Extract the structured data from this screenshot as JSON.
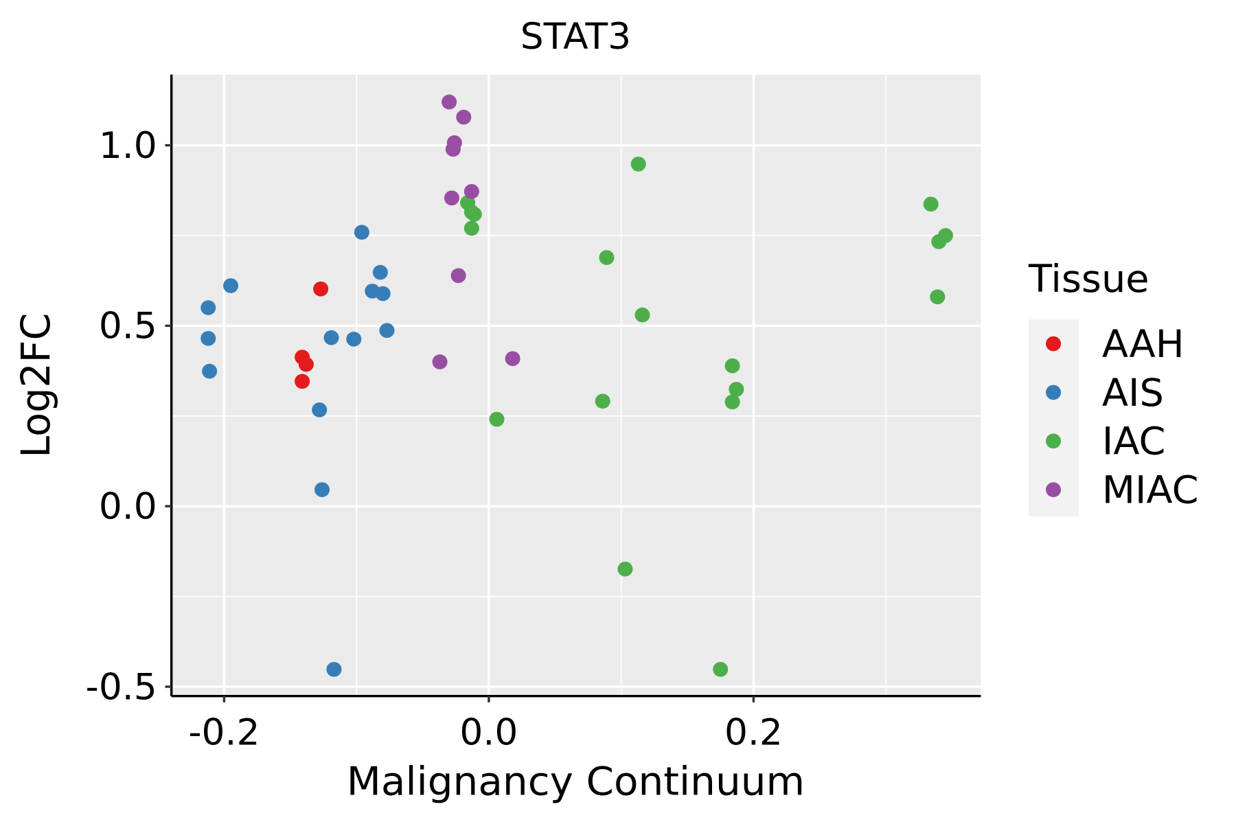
{
  "chart_data": {
    "type": "scatter",
    "title": "STAT3",
    "xlabel": "Malignancy Continuum",
    "ylabel": "Log2FC",
    "xlim": [
      -0.2398,
      0.3717
    ],
    "ylim": [
      -0.526,
      1.196
    ],
    "xticks": [
      -0.2,
      0.0,
      0.2
    ],
    "xtick_labels": [
      "-0.2",
      "0.0",
      "0.2"
    ],
    "xminor": [
      -0.1,
      0.1,
      0.3
    ],
    "yticks": [
      -0.5,
      0.0,
      0.5,
      1.0
    ],
    "ytick_labels": [
      "-0.5",
      "0.0",
      "0.5",
      "1.0"
    ],
    "yminor": [
      -0.25,
      0.25,
      0.75
    ],
    "grid": true,
    "legend": {
      "title": "Tissue",
      "placement": "right"
    },
    "series": [
      {
        "name": "AAH",
        "color": "#E41A1C",
        "points": [
          [
            -0.127,
            0.602
          ],
          [
            -0.141,
            0.413
          ],
          [
            -0.138,
            0.393
          ],
          [
            -0.141,
            0.346
          ]
        ]
      },
      {
        "name": "AIS",
        "color": "#377EB8",
        "points": [
          [
            -0.195,
            0.611
          ],
          [
            -0.212,
            0.55
          ],
          [
            -0.212,
            0.465
          ],
          [
            -0.211,
            0.374
          ],
          [
            -0.096,
            0.759
          ],
          [
            -0.082,
            0.648
          ],
          [
            -0.088,
            0.596
          ],
          [
            -0.08,
            0.589
          ],
          [
            -0.077,
            0.487
          ],
          [
            -0.119,
            0.467
          ],
          [
            -0.102,
            0.463
          ],
          [
            -0.128,
            0.267
          ],
          [
            -0.126,
            0.046
          ],
          [
            -0.117,
            -0.452
          ]
        ]
      },
      {
        "name": "IAC",
        "color": "#4DAF4A",
        "points": [
          [
            0.113,
            0.948
          ],
          [
            0.334,
            0.837
          ],
          [
            0.345,
            0.75
          ],
          [
            0.34,
            0.733
          ],
          [
            0.339,
            0.58
          ],
          [
            -0.016,
            0.841
          ],
          [
            -0.013,
            0.815
          ],
          [
            -0.011,
            0.809
          ],
          [
            -0.013,
            0.77
          ],
          [
            0.089,
            0.689
          ],
          [
            0.116,
            0.53
          ],
          [
            0.184,
            0.389
          ],
          [
            0.187,
            0.324
          ],
          [
            0.184,
            0.289
          ],
          [
            0.086,
            0.291
          ],
          [
            0.006,
            0.241
          ],
          [
            0.103,
            -0.174
          ],
          [
            0.175,
            -0.452
          ]
        ]
      },
      {
        "name": "MIAC",
        "color": "#984EA3",
        "points": [
          [
            -0.03,
            1.12
          ],
          [
            -0.019,
            1.078
          ],
          [
            -0.026,
            1.007
          ],
          [
            -0.027,
            0.989
          ],
          [
            -0.013,
            0.872
          ],
          [
            -0.028,
            0.854
          ],
          [
            -0.023,
            0.639
          ],
          [
            -0.037,
            0.4
          ],
          [
            0.018,
            0.409
          ]
        ]
      }
    ]
  }
}
